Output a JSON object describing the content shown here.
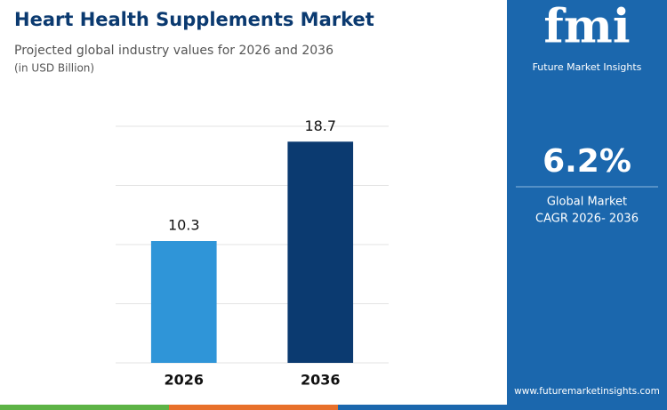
{
  "chart_data": {
    "type": "bar",
    "title": "Heart Health Supplements Market",
    "subtitle": "Projected global industry values for 2026 and 2036",
    "unit_note": "(in USD Billion)",
    "categories": [
      "2026",
      "2036"
    ],
    "values": [
      10.3,
      18.7
    ],
    "colors": [
      "#2f95d8",
      "#0b3a70"
    ],
    "ylim": [
      0,
      20
    ],
    "yticks": [
      0,
      5,
      10,
      15,
      20
    ],
    "grid": true
  },
  "panel": {
    "logo": "fmi",
    "brand": "Future Market Insights",
    "cagr": "6.2%",
    "cagr_label": [
      "Global Market",
      "CAGR 2026- 2036"
    ],
    "website": "www.futuremarketinsights.com"
  }
}
